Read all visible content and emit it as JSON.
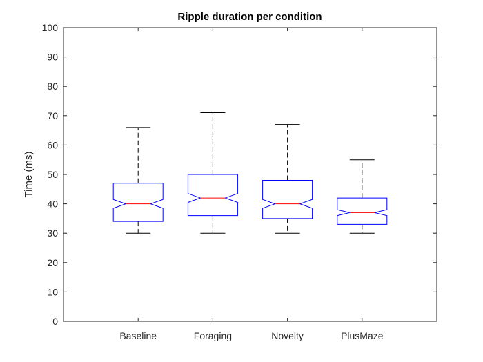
{
  "chart_data": {
    "type": "boxplot",
    "title": "Ripple duration per condition",
    "xlabel": "",
    "ylabel": "Time (ms)",
    "ylim": [
      0,
      100
    ],
    "yticks": [
      0,
      10,
      20,
      30,
      40,
      50,
      60,
      70,
      80,
      90,
      100
    ],
    "categories": [
      "Baseline",
      "Foraging",
      "Novelty",
      "PlusMaze"
    ],
    "notched": true,
    "boxes": [
      {
        "category": "Baseline",
        "whisker_low": 30,
        "q1": 34,
        "median": 40,
        "q3": 47,
        "whisker_high": 66,
        "notch_low": 38.5,
        "notch_high": 41.5
      },
      {
        "category": "Foraging",
        "whisker_low": 30,
        "q1": 36,
        "median": 42,
        "q3": 50,
        "whisker_high": 71,
        "notch_low": 40.5,
        "notch_high": 43.5
      },
      {
        "category": "Novelty",
        "whisker_low": 30,
        "q1": 35,
        "median": 40,
        "q3": 48,
        "whisker_high": 67,
        "notch_low": 38.5,
        "notch_high": 41.5
      },
      {
        "category": "PlusMaze",
        "whisker_low": 30,
        "q1": 33,
        "median": 37,
        "q3": 42,
        "whisker_high": 55,
        "notch_low": 36,
        "notch_high": 38
      }
    ],
    "grid": false,
    "colors": {
      "box": "#0000ff",
      "median": "#ff0000",
      "whisker": "#000000",
      "axis": "#262626"
    }
  }
}
